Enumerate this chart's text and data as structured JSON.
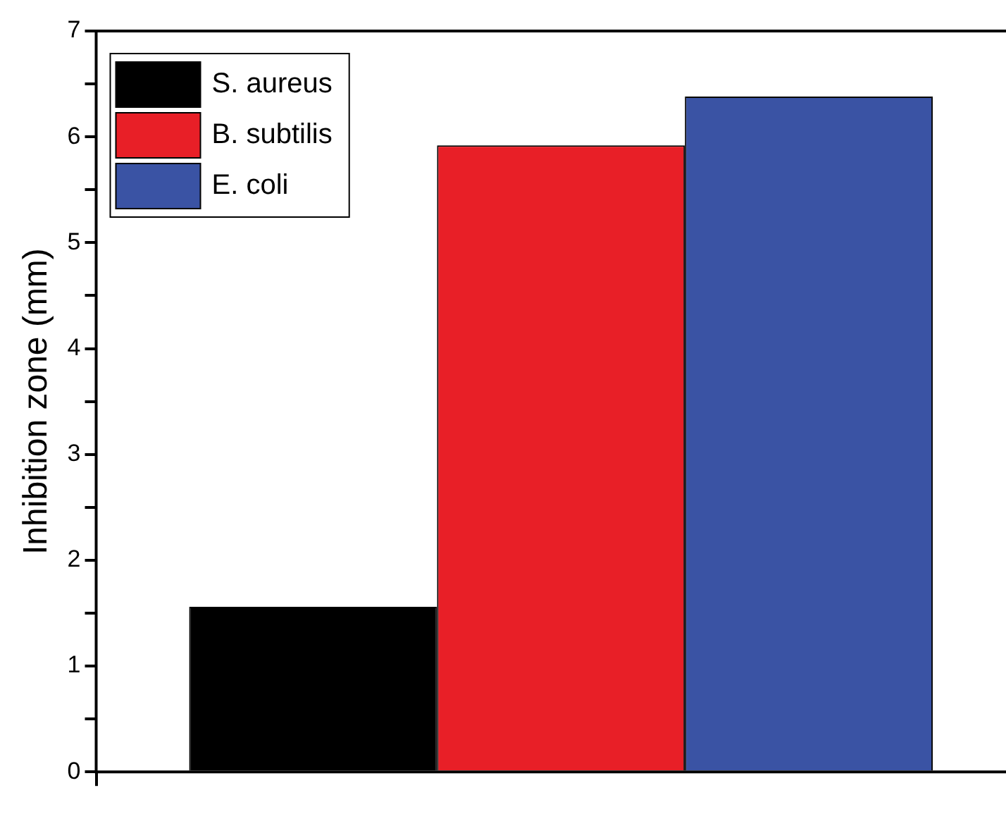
{
  "chart_data": {
    "type": "bar",
    "ylabel": "Inhibition zone (mm)",
    "categories": [
      null
    ],
    "series": [
      {
        "name": "S. aureus",
        "color": "#000000",
        "values": [
          1.56
        ]
      },
      {
        "name": "B. subtilis",
        "color": "#e81f27",
        "values": [
          5.92
        ]
      },
      {
        "name": "E. coli",
        "color": "#3a53a4",
        "values": [
          6.38
        ]
      }
    ],
    "ylim": [
      0,
      7
    ],
    "yticks": [
      0,
      {
        "value": 0.5,
        "label": null
      },
      1,
      {
        "value": 1.5,
        "label": null
      },
      2,
      {
        "value": 2.5,
        "label": null
      },
      3,
      {
        "value": 3.5,
        "label": null
      },
      4,
      {
        "value": 4.5,
        "label": null
      },
      5,
      {
        "value": 5.5,
        "label": null
      },
      6,
      {
        "value": 6.5,
        "label": null
      },
      7
    ],
    "grid": false,
    "legend": "top left"
  }
}
